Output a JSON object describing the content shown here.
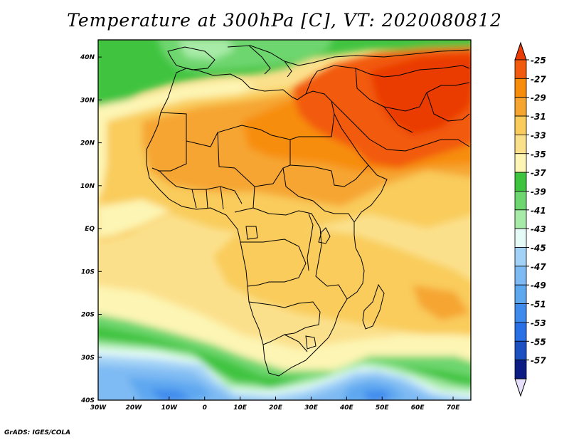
{
  "title": "Temperature at 300hPa [C], VT: 2020080812",
  "credit": "GrADS: IGES/COLA",
  "chart_data": {
    "type": "heatmap",
    "title": "Temperature at 300hPa [C], VT: 2020080812",
    "variable_unit": "C",
    "valid_time": "2020080812",
    "x_ticks": [
      "30W",
      "20W",
      "10W",
      "0",
      "10E",
      "20E",
      "30E",
      "40E",
      "50E",
      "60E",
      "70E"
    ],
    "y_ticks": [
      "40N",
      "30N",
      "20N",
      "10N",
      "EQ",
      "10S",
      "20S",
      "30S",
      "40S"
    ],
    "xlim": [
      -30,
      75
    ],
    "ylim": [
      -40,
      44
    ],
    "colorbar": {
      "labels": [
        "-25",
        "-27",
        "-29",
        "-31",
        "-33",
        "-35",
        "-37",
        "-39",
        "-41",
        "-43",
        "-45",
        "-47",
        "-49",
        "-51",
        "-53",
        "-55",
        "-57"
      ],
      "values": [
        -25,
        -27,
        -29,
        -31,
        -33,
        -35,
        -37,
        -39,
        -41,
        -43,
        -45,
        -47,
        -49,
        -51,
        -53,
        -55,
        -57
      ],
      "colors": [
        "#f25a0d",
        "#f78d0a",
        "#f6a531",
        "#f9cc5c",
        "#fbe08c",
        "#fdf5b4",
        "#3fc43f",
        "#6ed66e",
        "#a8eba8",
        "#e6fbf7",
        "#a2d2f6",
        "#7ebaf3",
        "#5ea8f0",
        "#3f8bed",
        "#2970e6",
        "#1d50c2",
        "#0c1c82"
      ],
      "top_extend_color": "#ea3b05",
      "bottom_extend_color": "#e6e0fa"
    },
    "field_description": "Warmest (above -27C) over Arabian Peninsula, NE Africa and SW Asia; -29 to -33 across Sahel and tropical Africa; cooler bands (-37 to -53) south of 30S and along the Mediterranean near 40N."
  }
}
